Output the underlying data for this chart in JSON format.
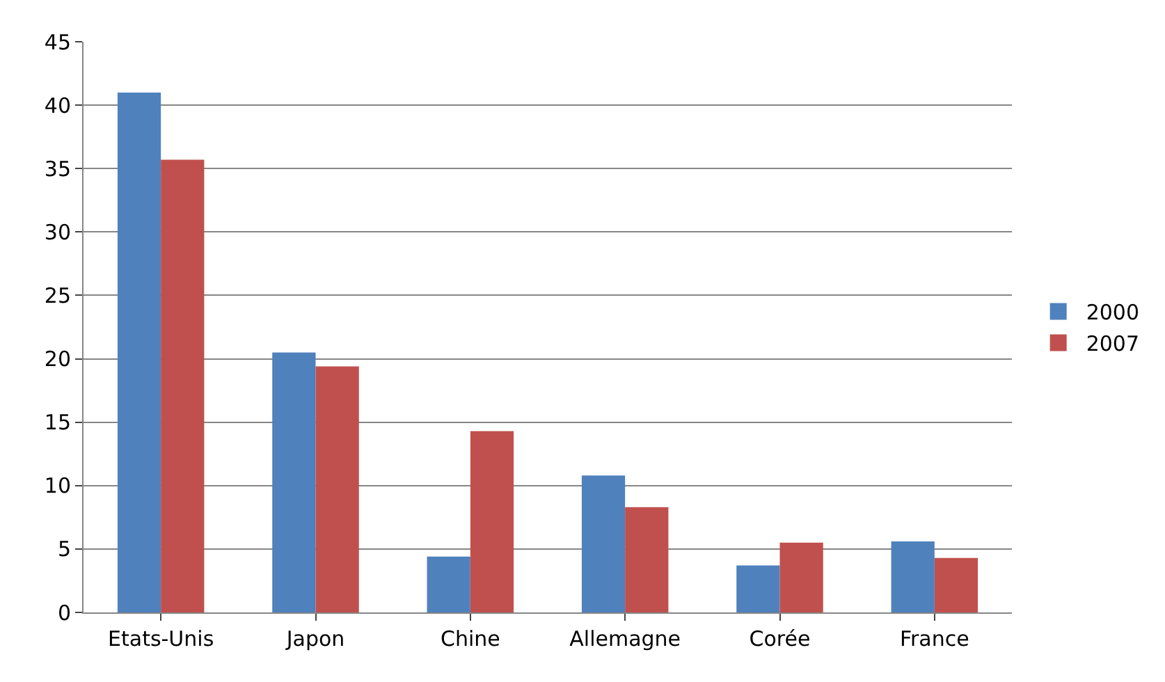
{
  "chart_data": {
    "type": "bar",
    "categories": [
      "Etats-Unis",
      "Japon",
      "Chine",
      "Allemagne",
      "Corée",
      "France"
    ],
    "series": [
      {
        "name": "2000",
        "color": "#4f81bd",
        "values": [
          41,
          20.5,
          4.4,
          10.8,
          3.7,
          5.6
        ]
      },
      {
        "name": "2007",
        "color": "#c0504d",
        "values": [
          35.7,
          19.4,
          14.3,
          8.3,
          5.5,
          4.3
        ]
      }
    ],
    "ylim": [
      0,
      45
    ],
    "yticks": [
      0,
      5,
      10,
      15,
      20,
      25,
      30,
      35,
      40,
      45
    ],
    "grid": "y",
    "legend": "right"
  }
}
